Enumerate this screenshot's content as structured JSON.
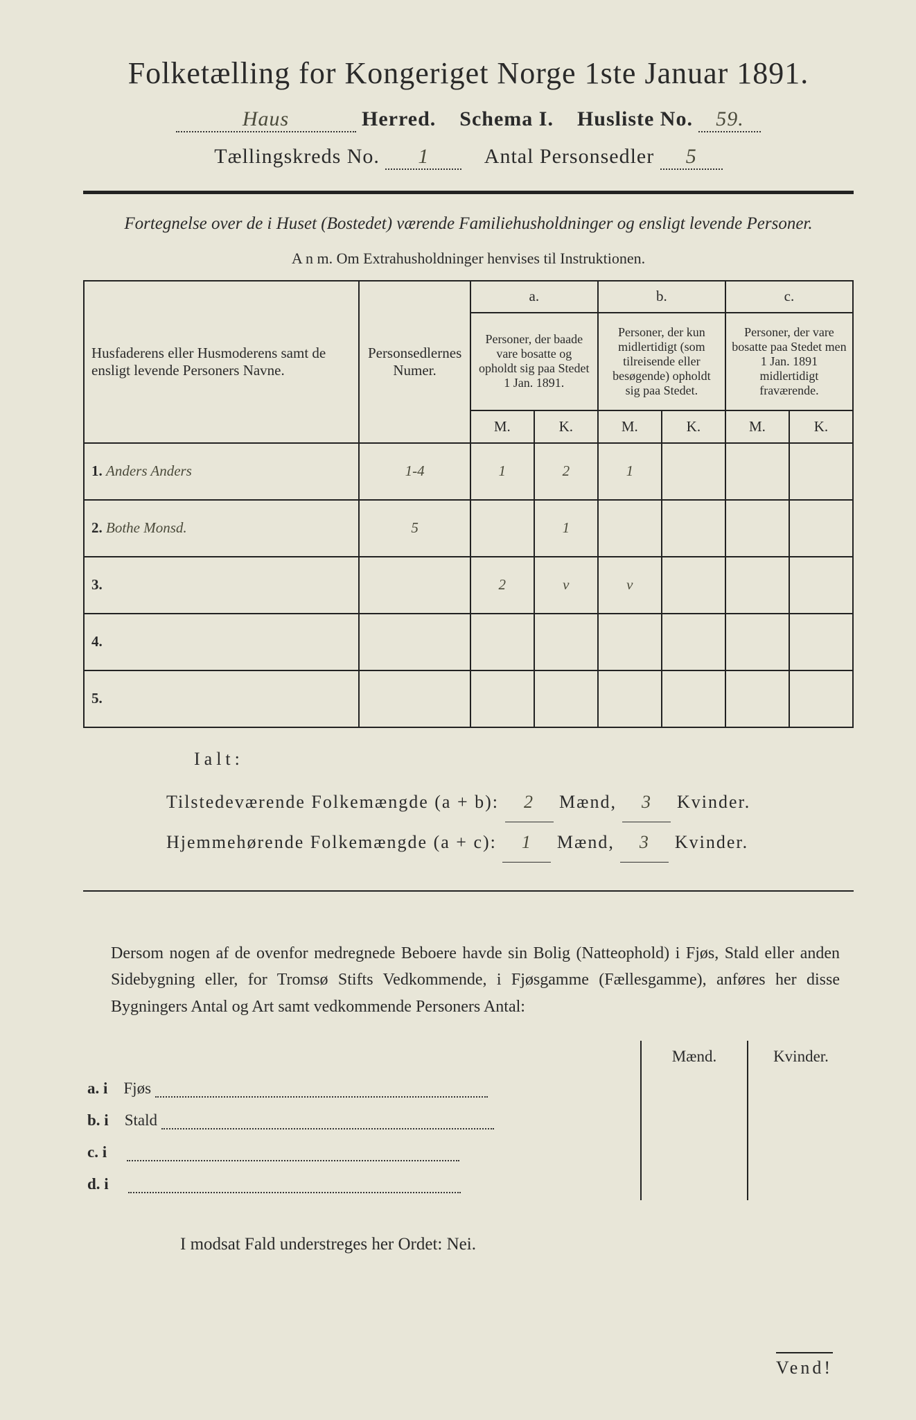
{
  "title": "Folketælling for Kongeriget Norge 1ste Januar 1891.",
  "line2": {
    "herred_value": "Haus",
    "herred_label": "Herred.",
    "schema_label": "Schema I.",
    "husliste_label": "Husliste No.",
    "husliste_value": "59."
  },
  "line3": {
    "kreds_label": "Tællingskreds No.",
    "kreds_value": "1",
    "antal_label": "Antal Personsedler",
    "antal_value": "5"
  },
  "subtitle": "Fortegnelse over de i Huset (Bostedet) værende Familiehusholdninger og ensligt levende Personer.",
  "anm_label": "A n m.  Om Extrahusholdninger henvises til Instruktionen.",
  "table": {
    "col_name": "Husfaderens eller Husmoderens samt de ensligt levende Personers Navne.",
    "col_num": "Personsedlernes Numer.",
    "col_a_top": "a.",
    "col_a": "Personer, der baade vare bosatte og opholdt sig paa Stedet 1 Jan. 1891.",
    "col_b_top": "b.",
    "col_b": "Personer, der kun midlertidigt (som tilreisende eller besøgende) opholdt sig paa Stedet.",
    "col_c_top": "c.",
    "col_c": "Personer, der vare bosatte paa Stedet men 1 Jan. 1891 midlertidigt fraværende.",
    "M": "M.",
    "K": "K.",
    "rows": [
      {
        "n": "1.",
        "name": "Anders Anders",
        "num": "1-4",
        "aM": "1",
        "aK": "2",
        "bM": "1",
        "bK": "",
        "cM": "",
        "cK": ""
      },
      {
        "n": "2.",
        "name": "Bothe Monsd.",
        "num": "5",
        "aM": "",
        "aK": "1",
        "bM": "",
        "bK": "",
        "cM": "",
        "cK": ""
      },
      {
        "n": "3.",
        "name": "",
        "num": "",
        "aM": "2",
        "aK": "v",
        "bM": "v",
        "bK": "",
        "cM": "",
        "cK": ""
      },
      {
        "n": "4.",
        "name": "",
        "num": "",
        "aM": "",
        "aK": "",
        "bM": "",
        "bK": "",
        "cM": "",
        "cK": ""
      },
      {
        "n": "5.",
        "name": "",
        "num": "",
        "aM": "",
        "aK": "",
        "bM": "",
        "bK": "",
        "cM": "",
        "cK": ""
      }
    ]
  },
  "ialt": "Ialt:",
  "totals": {
    "line1_label": "Tilstedeværende Folkemængde (a + b):",
    "line1_m": "2",
    "line1_k": "3",
    "line2_label": "Hjemmehørende Folkemængde (a + c):",
    "line2_m": "1",
    "line2_k": "3",
    "maend": "Mænd,",
    "kvinder": "Kvinder."
  },
  "para": "Dersom nogen af de ovenfor medregnede Beboere havde sin Bolig (Natteophold) i Fjøs, Stald eller anden Sidebygning eller, for Tromsø Stifts Vedkommende, i Fjøsgamme (Fællesgamme), anføres her disse Bygningers Antal og Art samt vedkommende Personers Antal:",
  "bld": {
    "maend": "Mænd.",
    "kvinder": "Kvinder.",
    "rows": [
      {
        "k": "a. i",
        "v": "Fjøs"
      },
      {
        "k": "b. i",
        "v": "Stald"
      },
      {
        "k": "c. i",
        "v": ""
      },
      {
        "k": "d. i",
        "v": ""
      }
    ]
  },
  "modsat": "I modsat Fald understreges her Ordet: Nei.",
  "vend": "Vend!",
  "colors": {
    "paper": "#e8e6d8",
    "ink": "#2a2a2a",
    "handwriting": "#4a4a3a"
  }
}
